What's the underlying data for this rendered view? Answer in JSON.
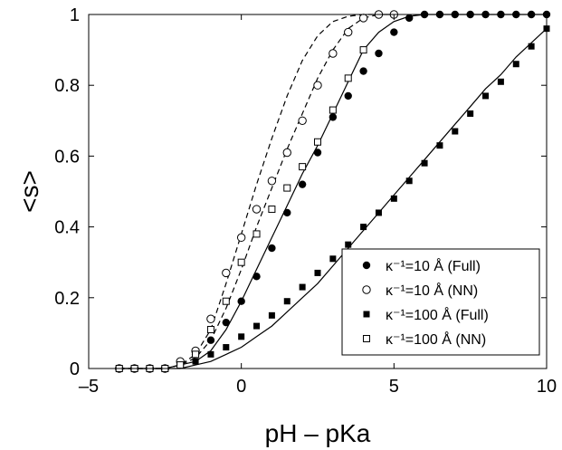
{
  "chart_data": {
    "type": "scatter",
    "title": "",
    "xlabel": "pH – pKa",
    "ylabel": "<s>",
    "xlim": [
      -5,
      10
    ],
    "ylim": [
      0,
      1
    ],
    "xticks": [
      -5,
      0,
      5,
      10
    ],
    "xtick_labels": [
      "–5",
      "0",
      "5",
      "10"
    ],
    "yticks": [
      0,
      0.2,
      0.4,
      0.6,
      0.8,
      1
    ],
    "ytick_labels": [
      "0",
      "0.2",
      "0.4",
      "0.6",
      "0.8",
      "1"
    ],
    "grid": false,
    "legend_position": "bottom-right",
    "series": [
      {
        "name": "κ⁻¹=10 Å  (Full)",
        "marker": "filled-circle",
        "x": [
          -4,
          -3.5,
          -3,
          -2.5,
          -2,
          -1.5,
          -1,
          -0.5,
          0,
          0.5,
          1,
          1.5,
          2,
          2.5,
          3,
          3.5,
          4,
          4.5,
          5,
          5.5,
          6,
          6.5,
          7,
          7.5,
          8,
          8.5,
          9,
          9.5,
          10
        ],
        "y": [
          0,
          0,
          0,
          0,
          0.01,
          0.04,
          0.08,
          0.13,
          0.19,
          0.26,
          0.34,
          0.44,
          0.52,
          0.61,
          0.71,
          0.77,
          0.84,
          0.89,
          0.95,
          0.99,
          1,
          1,
          1,
          1,
          1,
          1,
          1,
          1,
          1
        ]
      },
      {
        "name": "κ⁻¹=10 Å  (NN)",
        "marker": "open-circle",
        "x": [
          -4,
          -3.5,
          -3,
          -2.5,
          -2,
          -1.5,
          -1,
          -0.5,
          0,
          0.5,
          1,
          1.5,
          2,
          2.5,
          3,
          3.5,
          4,
          4.5,
          5
        ],
        "y": [
          0,
          0,
          0,
          0,
          0.02,
          0.05,
          0.14,
          0.27,
          0.37,
          0.45,
          0.53,
          0.61,
          0.7,
          0.8,
          0.89,
          0.95,
          0.99,
          1,
          1
        ]
      },
      {
        "name": "κ⁻¹=100 Å  (Full)",
        "marker": "filled-square",
        "x": [
          -4,
          -3.5,
          -3,
          -2.5,
          -2,
          -1.5,
          -1,
          -0.5,
          0,
          0.5,
          1,
          1.5,
          2,
          2.5,
          3,
          3.5,
          4,
          4.5,
          5,
          5.5,
          6,
          6.5,
          7,
          7.5,
          8,
          8.5,
          9,
          9.5,
          10
        ],
        "y": [
          0,
          0,
          0,
          0,
          0.01,
          0.02,
          0.04,
          0.06,
          0.09,
          0.12,
          0.15,
          0.19,
          0.23,
          0.27,
          0.31,
          0.35,
          0.4,
          0.44,
          0.48,
          0.53,
          0.58,
          0.63,
          0.67,
          0.72,
          0.77,
          0.81,
          0.86,
          0.91,
          0.96
        ]
      },
      {
        "name": "κ⁻¹=100 Å  (NN)",
        "marker": "open-square",
        "x": [
          -4,
          -3.5,
          -3,
          -2.5,
          -2,
          -1.5,
          -1,
          -0.5,
          0,
          0.5,
          1,
          1.5,
          2,
          2.5,
          3,
          3.5,
          4
        ],
        "y": [
          0,
          0,
          0,
          0,
          0.01,
          0.04,
          0.11,
          0.19,
          0.3,
          0.38,
          0.45,
          0.51,
          0.57,
          0.64,
          0.73,
          0.82,
          0.9
        ]
      }
    ],
    "curves": [
      {
        "style": "solid",
        "x": [
          -4,
          -3.5,
          -3,
          -2.5,
          -2,
          -1.5,
          -1,
          -0.5,
          0,
          0.5,
          1,
          1.5,
          2,
          2.5,
          3,
          3.5,
          4,
          4.5,
          5,
          5.5,
          6,
          7,
          8,
          9,
          10
        ],
        "y": [
          0,
          0,
          0,
          0,
          0.01,
          0.02,
          0.05,
          0.11,
          0.19,
          0.28,
          0.37,
          0.46,
          0.55,
          0.63,
          0.72,
          0.81,
          0.9,
          0.95,
          0.98,
          0.995,
          1,
          1,
          1,
          1,
          1
        ]
      },
      {
        "style": "dashed",
        "x": [
          -4,
          -3.5,
          -3,
          -2.5,
          -2,
          -1.5,
          -1,
          -0.5,
          0,
          0.5,
          1,
          1.5,
          2,
          2.5,
          3,
          3.5,
          4,
          4.5,
          5
        ],
        "y": [
          0,
          0,
          0,
          0,
          0.01,
          0.04,
          0.11,
          0.24,
          0.38,
          0.52,
          0.65,
          0.77,
          0.87,
          0.94,
          0.98,
          0.995,
          1,
          1,
          1
        ]
      },
      {
        "style": "dashed",
        "x": [
          -4,
          -3.5,
          -3,
          -2.5,
          -2,
          -1.5,
          -1,
          -0.5,
          0,
          0.5,
          1,
          1.5,
          2,
          2.5,
          3,
          3.5,
          4,
          4.5,
          5
        ],
        "y": [
          0,
          0,
          0,
          0,
          0.01,
          0.03,
          0.08,
          0.17,
          0.28,
          0.4,
          0.51,
          0.62,
          0.72,
          0.82,
          0.9,
          0.96,
          0.99,
          1,
          1
        ]
      },
      {
        "style": "solid",
        "x": [
          -4,
          -3.5,
          -3,
          -2.5,
          -2,
          -1.5,
          -1,
          -0.5,
          0,
          0.5,
          1,
          1.5,
          2,
          2.5,
          3,
          3.5,
          4,
          4.5,
          5,
          5.5,
          6,
          6.5,
          7,
          7.5,
          8,
          8.5,
          9,
          9.5,
          10
        ],
        "y": [
          0,
          0,
          0,
          0,
          0,
          0.01,
          0.02,
          0.04,
          0.06,
          0.09,
          0.12,
          0.16,
          0.2,
          0.24,
          0.29,
          0.34,
          0.39,
          0.44,
          0.49,
          0.54,
          0.59,
          0.64,
          0.69,
          0.74,
          0.79,
          0.83,
          0.88,
          0.92,
          0.96
        ]
      }
    ]
  }
}
